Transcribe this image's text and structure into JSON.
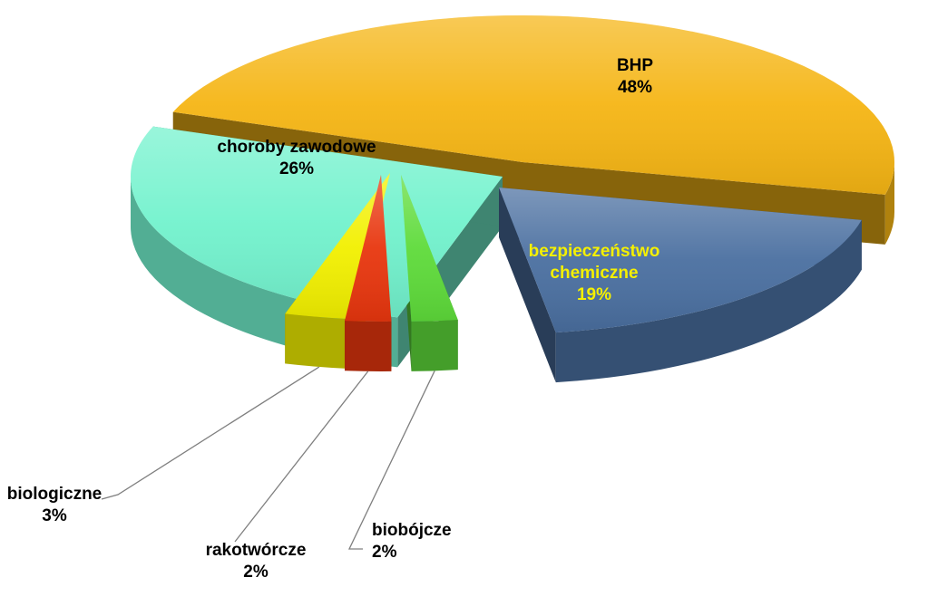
{
  "chart_data": {
    "type": "pie",
    "style": "3d-exploded",
    "title": "",
    "slices": [
      {
        "label": "BHP",
        "value": 48,
        "value_label": "48%",
        "color": "#F5B514",
        "label_color": "#000000"
      },
      {
        "label": "bezpieczeństwo chemiczne",
        "value": 19,
        "value_label": "19%",
        "color": "#4A6FA0",
        "label_color": "#F5F000"
      },
      {
        "label": "biobójcze",
        "value": 2,
        "value_label": "2%",
        "color": "#5EDB3A",
        "label_color": "#000000"
      },
      {
        "label": "rakotwórcze",
        "value": 2,
        "value_label": "2%",
        "color": "#E8360E",
        "label_color": "#000000"
      },
      {
        "label": "biologiczne",
        "value": 3,
        "value_label": "3%",
        "color": "#F2F000",
        "label_color": "#000000"
      },
      {
        "label": "choroby zawodowe",
        "value": 26,
        "value_label": "26%",
        "color": "#72F2CD",
        "label_color": "#000000"
      }
    ]
  }
}
